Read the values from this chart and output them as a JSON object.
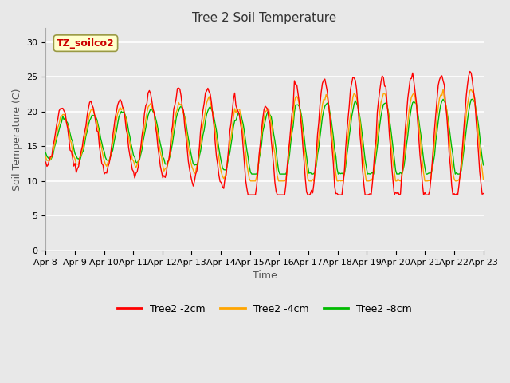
{
  "title": "Tree 2 Soil Temperature",
  "xlabel": "Time",
  "ylabel": "Soil Temperature (C)",
  "annotation": "TZ_soilco2",
  "legend": [
    "Tree2 -2cm",
    "Tree2 -4cm",
    "Tree2 -8cm"
  ],
  "line_colors": [
    "#ff0000",
    "#ffa500",
    "#00bb00"
  ],
  "ylim": [
    0,
    32
  ],
  "yticks": [
    0,
    5,
    10,
    15,
    20,
    25,
    30
  ],
  "xtick_labels": [
    "Apr 8",
    "Apr 9",
    "Apr 10",
    "Apr 11",
    "Apr 12",
    "Apr 13",
    "Apr 14",
    "Apr 15",
    "Apr 16",
    "Apr 17",
    "Apr 18",
    "Apr 19",
    "Apr 20",
    "Apr 21",
    "Apr 22",
    "Apr 23"
  ],
  "plot_bg": "#e8e8e8",
  "fig_bg": "#e8e8e8",
  "title_fontsize": 11,
  "label_fontsize": 9,
  "tick_fontsize": 8,
  "legend_fontsize": 9
}
